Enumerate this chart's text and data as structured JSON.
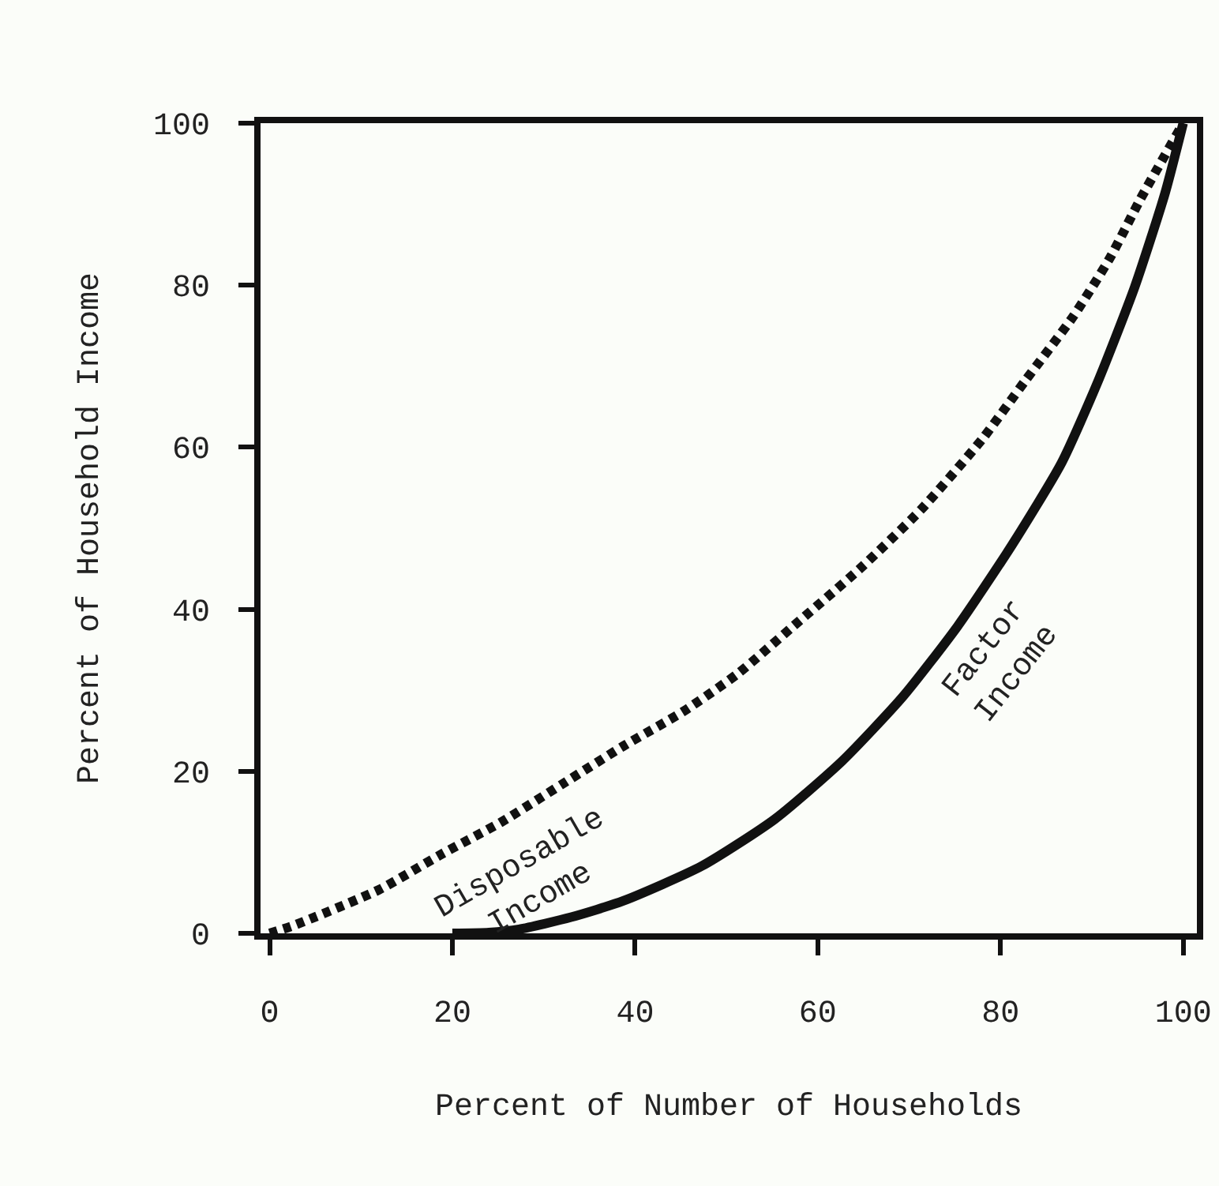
{
  "chart_data": {
    "type": "line",
    "xlabel": "Percent of Number of Households",
    "ylabel": "Percent of Household Income",
    "xlim": [
      -1,
      101.5
    ],
    "ylim": [
      0,
      100
    ],
    "xticks": [
      0,
      20,
      40,
      60,
      80,
      100
    ],
    "yticks": [
      0,
      20,
      40,
      60,
      80,
      100
    ],
    "grid": false,
    "legend": false,
    "marker": "none",
    "series": [
      {
        "name": "Disposable Income",
        "color": "#111111",
        "line_style": "dashed",
        "x": [
          0,
          2.7,
          12,
          18.7,
          25.3,
          32,
          38.7,
          45.3,
          51.3,
          57.3,
          64.7,
          71.3,
          78,
          82.7,
          88,
          92,
          95.3,
          100
        ],
        "values": [
          0,
          1,
          5.4,
          9.7,
          13.7,
          18.4,
          23.1,
          27.4,
          32.1,
          37.9,
          45.1,
          52.3,
          61,
          68.2,
          76.2,
          83.4,
          90.6,
          100
        ]
      },
      {
        "name": "Factor Income",
        "color": "#111111",
        "line_style": "solid",
        "x": [
          20,
          24,
          27.3,
          33,
          38.7,
          47.3,
          55.3,
          62.7,
          69.3,
          75.3,
          81.3,
          86.7,
          90.7,
          94.7,
          98,
          100
        ],
        "values": [
          0,
          0.1,
          0.5,
          2,
          4,
          8.3,
          14.1,
          21.3,
          29.2,
          37.9,
          48,
          58.1,
          68.2,
          79.8,
          91.3,
          100
        ]
      }
    ]
  }
}
